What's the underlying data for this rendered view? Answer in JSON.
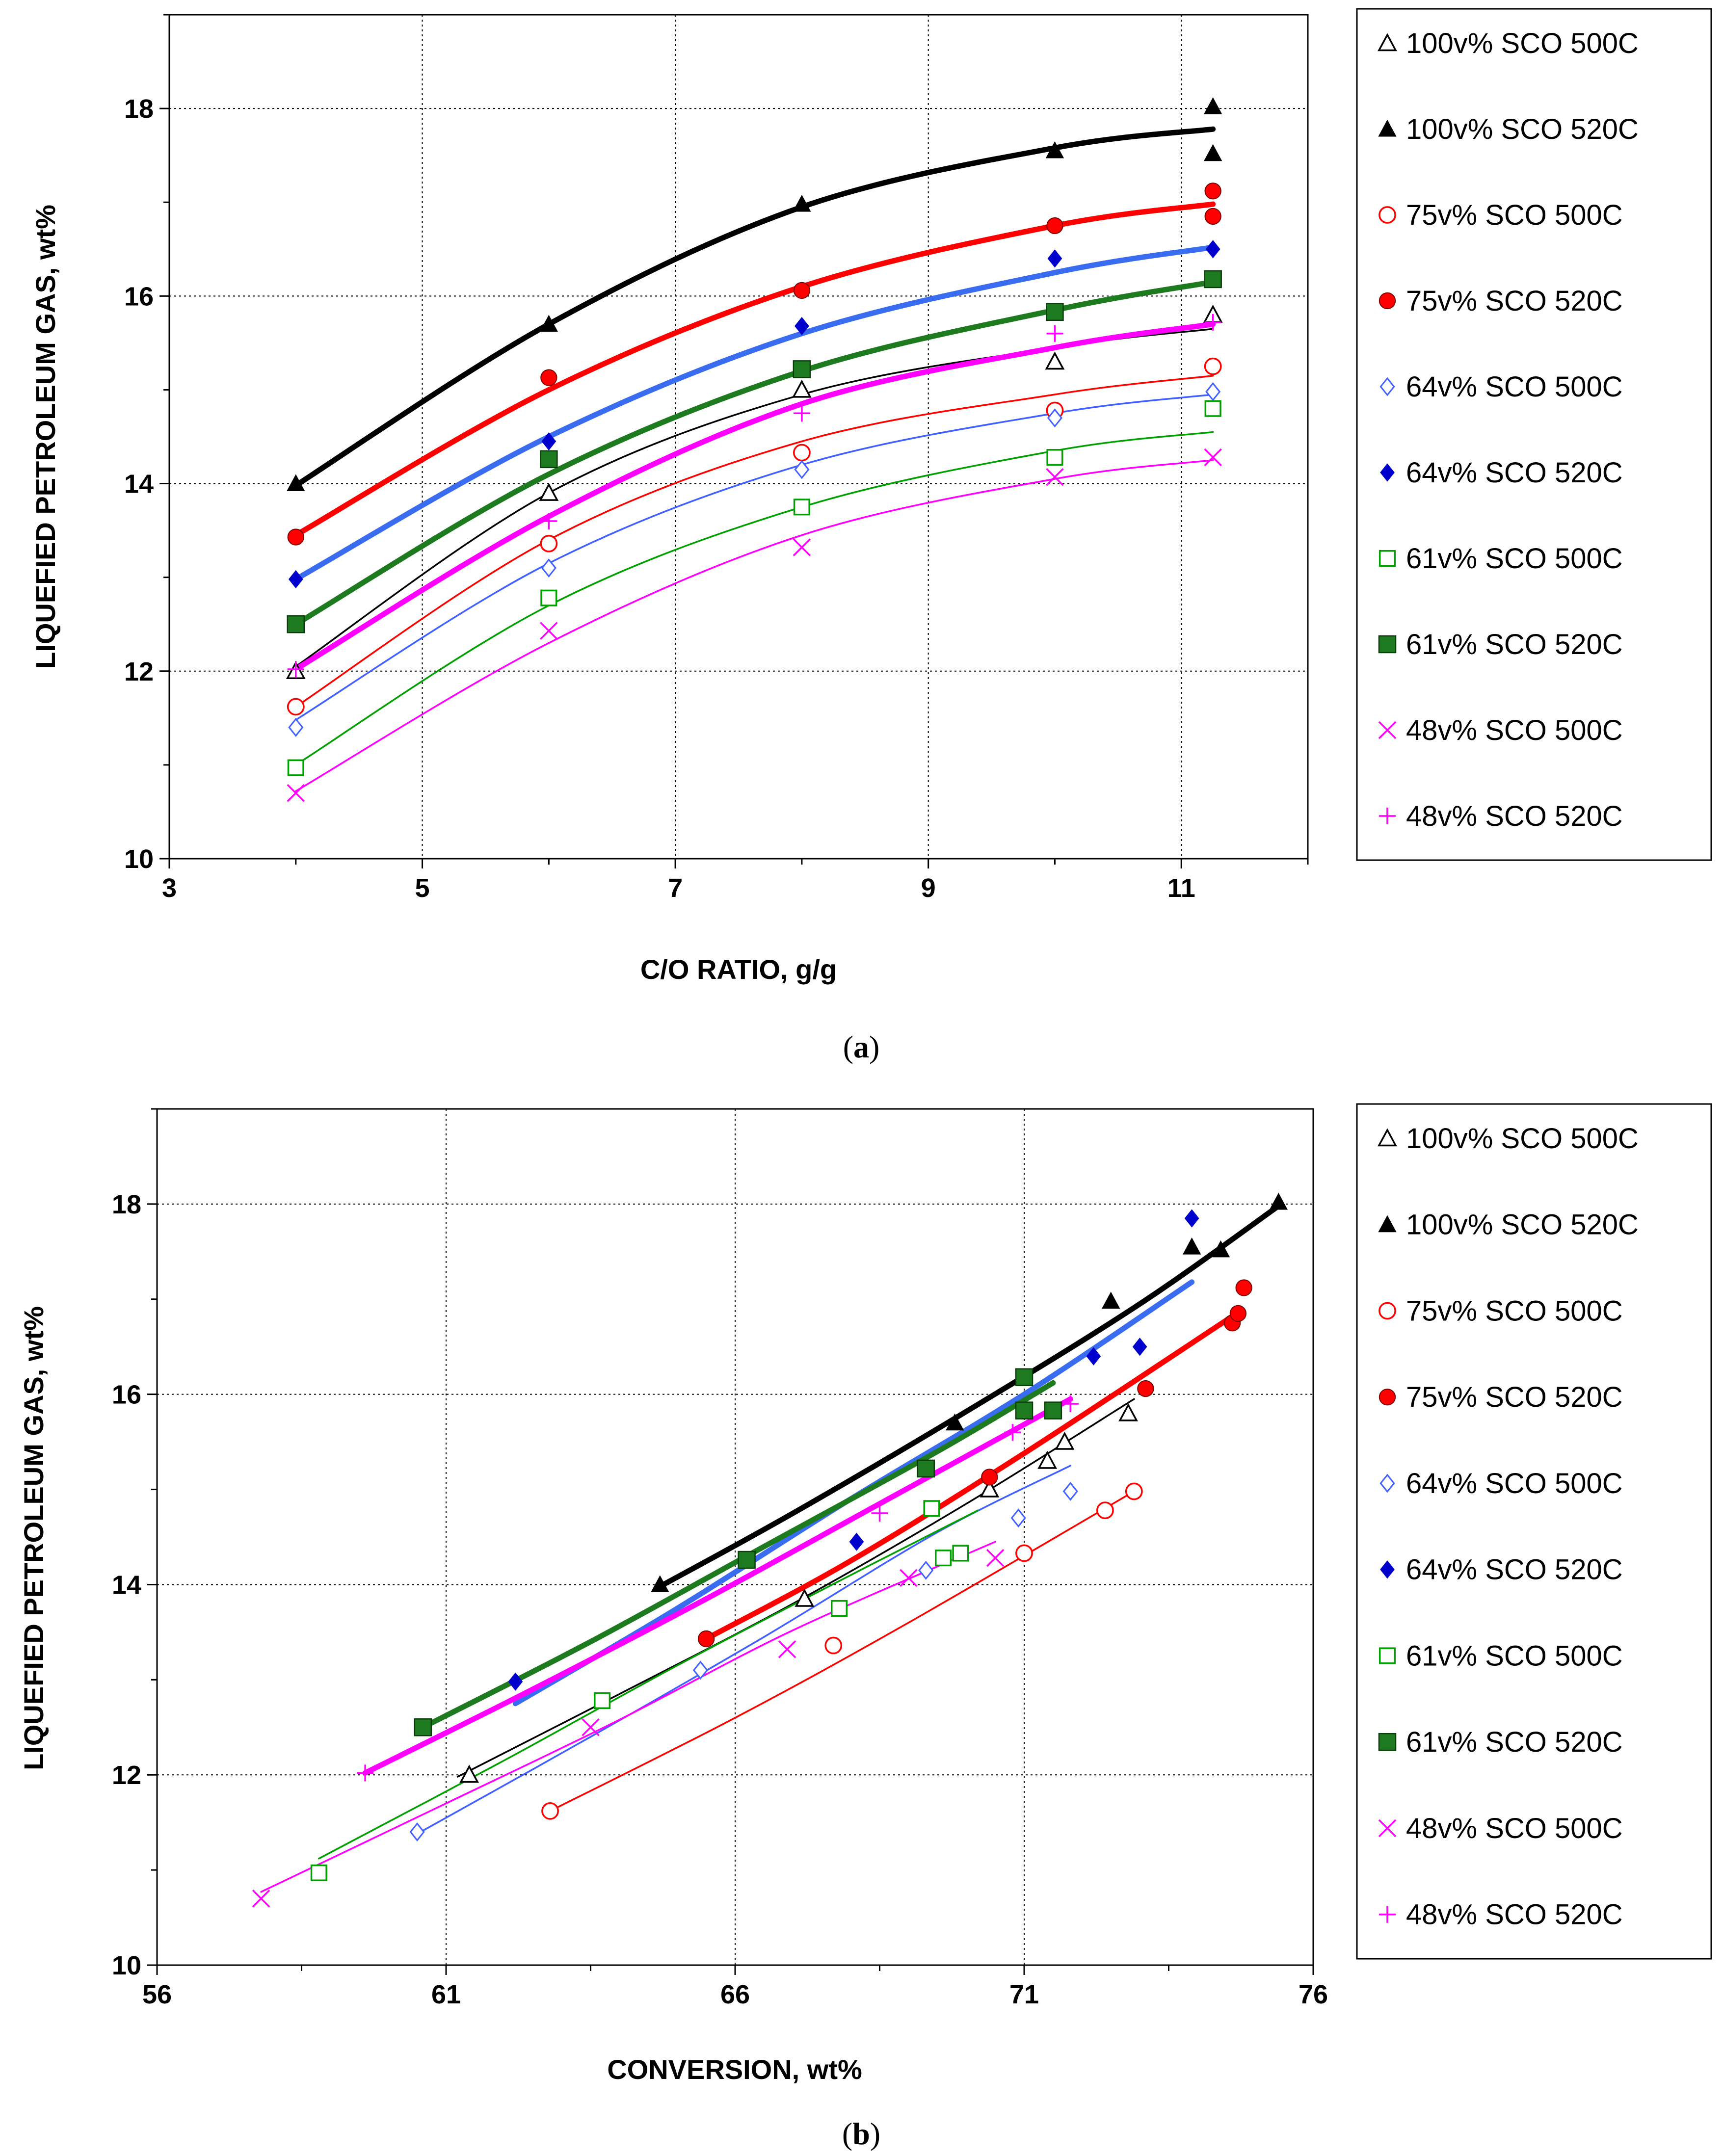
{
  "chart_data": [
    {
      "type": "scatter",
      "panel": "(a)",
      "caption_letter": "a",
      "xlabel": "C/O RATIO, g/g",
      "ylabel": "LIQUEFIED PETROLEUM GAS, wt%",
      "xlim": [
        3,
        12
      ],
      "ylim": [
        10,
        19
      ],
      "xticks": [
        3,
        5,
        7,
        9,
        11
      ],
      "yticks": [
        10,
        12,
        14,
        16,
        18
      ],
      "grid": true,
      "legend_position": "right",
      "series": [
        {
          "name": "100v% SCO 500C",
          "marker": "triangle-open",
          "color": "#000000",
          "trend_width": "thin",
          "points": [
            [
              4,
              12.0
            ],
            [
              6,
              13.9
            ],
            [
              8,
              15.0
            ],
            [
              10,
              15.3
            ],
            [
              11.25,
              15.8
            ]
          ],
          "trend": [
            [
              4,
              12.05
            ],
            [
              6,
              13.9
            ],
            [
              8,
              14.95
            ],
            [
              10,
              15.45
            ],
            [
              11.25,
              15.65
            ]
          ]
        },
        {
          "name": "100v% SCO 520C",
          "marker": "triangle-filled",
          "color": "#000000",
          "trend_width": "thick",
          "points": [
            [
              4,
              14.0
            ],
            [
              6,
              15.7
            ],
            [
              8,
              16.98
            ],
            [
              10,
              17.55
            ],
            [
              11.25,
              18.02
            ],
            [
              11.25,
              17.52
            ]
          ],
          "trend": [
            [
              4,
              13.98
            ],
            [
              6,
              15.7
            ],
            [
              8,
              16.95
            ],
            [
              10,
              17.58
            ],
            [
              11.25,
              17.78
            ]
          ]
        },
        {
          "name": "75v% SCO 500C",
          "marker": "circle-open",
          "color": "#ff0000",
          "trend_width": "thin",
          "points": [
            [
              4,
              11.62
            ],
            [
              6,
              13.36
            ],
            [
              8,
              14.33
            ],
            [
              10,
              14.78
            ],
            [
              11.25,
              15.25
            ]
          ],
          "trend": [
            [
              4,
              11.62
            ],
            [
              6,
              13.4
            ],
            [
              8,
              14.45
            ],
            [
              10,
              14.95
            ],
            [
              11.25,
              15.15
            ]
          ]
        },
        {
          "name": "75v% SCO 520C",
          "marker": "circle-filled",
          "color": "#ff0000",
          "trend_width": "thick",
          "points": [
            [
              4,
              13.43
            ],
            [
              6,
              15.13
            ],
            [
              8,
              16.06
            ],
            [
              10,
              16.75
            ],
            [
              11.25,
              17.12
            ],
            [
              11.25,
              16.85
            ]
          ],
          "trend": [
            [
              4,
              13.45
            ],
            [
              6,
              15.0
            ],
            [
              8,
              16.1
            ],
            [
              10,
              16.75
            ],
            [
              11.25,
              16.98
            ]
          ]
        },
        {
          "name": "64v% SCO 500C",
          "marker": "diamond-open",
          "color": "#4060ff",
          "trend_width": "thin",
          "points": [
            [
              4,
              11.4
            ],
            [
              6,
              13.1
            ],
            [
              8,
              14.15
            ],
            [
              10,
              14.7
            ],
            [
              11.25,
              14.98
            ]
          ],
          "trend": [
            [
              4,
              11.48
            ],
            [
              6,
              13.15
            ],
            [
              8,
              14.2
            ],
            [
              10,
              14.75
            ],
            [
              11.25,
              14.95
            ]
          ]
        },
        {
          "name": "64v% SCO 520C",
          "marker": "diamond-filled",
          "color": "#0000cc",
          "trend_width": "thick",
          "points": [
            [
              4,
              12.98
            ],
            [
              6,
              14.45
            ],
            [
              8,
              15.68
            ],
            [
              10,
              16.4
            ],
            [
              11.25,
              16.5
            ]
          ],
          "trend": [
            [
              4,
              12.98
            ],
            [
              6,
              14.5
            ],
            [
              8,
              15.6
            ],
            [
              10,
              16.25
            ],
            [
              11.25,
              16.52
            ]
          ]
        },
        {
          "name": "61v% SCO 500C",
          "marker": "square-open",
          "color": "#00a000",
          "trend_width": "thin",
          "points": [
            [
              4,
              10.97
            ],
            [
              6,
              12.78
            ],
            [
              8,
              13.75
            ],
            [
              10,
              14.28
            ],
            [
              11.25,
              14.8
            ]
          ],
          "trend": [
            [
              4,
              11.0
            ],
            [
              6,
              12.7
            ],
            [
              8,
              13.75
            ],
            [
              10,
              14.35
            ],
            [
              11.25,
              14.55
            ]
          ]
        },
        {
          "name": "61v% SCO 520C",
          "marker": "square-filled",
          "color": "#1e7a1e",
          "trend_width": "thick",
          "points": [
            [
              4,
              12.5
            ],
            [
              6,
              14.26
            ],
            [
              8,
              15.22
            ],
            [
              10,
              15.83
            ],
            [
              11.25,
              16.18
            ]
          ],
          "trend": [
            [
              4,
              12.5
            ],
            [
              6,
              14.1
            ],
            [
              8,
              15.2
            ],
            [
              10,
              15.85
            ],
            [
              11.25,
              16.15
            ]
          ]
        },
        {
          "name": "48v% SCO 500C",
          "marker": "x",
          "color": "#ff00ff",
          "trend_width": "thin",
          "points": [
            [
              4,
              10.7
            ],
            [
              6,
              12.43
            ],
            [
              8,
              13.32
            ],
            [
              10,
              14.07
            ],
            [
              11.25,
              14.28
            ]
          ],
          "trend": [
            [
              4,
              10.72
            ],
            [
              6,
              12.3
            ],
            [
              8,
              13.45
            ],
            [
              10,
              14.05
            ],
            [
              11.25,
              14.25
            ]
          ]
        },
        {
          "name": "48v% SCO 520C",
          "marker": "plus",
          "color": "#ff00ff",
          "trend_width": "thick",
          "points": [
            [
              4,
              12.02
            ],
            [
              6,
              13.6
            ],
            [
              8,
              14.75
            ],
            [
              10,
              15.6
            ],
            [
              11.25,
              15.72
            ]
          ],
          "trend": [
            [
              4,
              12.02
            ],
            [
              6,
              13.65
            ],
            [
              8,
              14.85
            ],
            [
              10,
              15.45
            ],
            [
              11.25,
              15.7
            ]
          ]
        }
      ]
    },
    {
      "type": "scatter",
      "panel": "(b)",
      "caption_letter": "b",
      "xlabel": "CONVERSION, wt%",
      "ylabel": "LIQUEFIED PETROLEUM GAS, wt%",
      "xlim": [
        56,
        76
      ],
      "ylim": [
        10,
        19
      ],
      "xticks": [
        56,
        61,
        66,
        71,
        76
      ],
      "yticks": [
        10,
        12,
        14,
        16,
        18
      ],
      "grid": true,
      "legend_position": "right",
      "series": [
        {
          "name": "100v% SCO 500C",
          "marker": "triangle-open",
          "color": "#000000",
          "trend_width": "thin",
          "points": [
            [
              61.4,
              12.0
            ],
            [
              67.2,
              13.85
            ],
            [
              70.4,
              15.0
            ],
            [
              71.4,
              15.3
            ],
            [
              71.7,
              15.5
            ],
            [
              72.8,
              15.8
            ]
          ],
          "trend": [
            [
              61.2,
              11.98
            ],
            [
              64.0,
              12.85
            ],
            [
              67.0,
              13.8
            ],
            [
              70.0,
              14.85
            ],
            [
              72.9,
              15.95
            ]
          ]
        },
        {
          "name": "100v% SCO 520C",
          "marker": "triangle-filled",
          "color": "#000000",
          "trend_width": "thick",
          "points": [
            [
              64.7,
              14.0
            ],
            [
              69.8,
              15.7
            ],
            [
              72.5,
              16.98
            ],
            [
              73.9,
              17.55
            ],
            [
              74.4,
              17.52
            ],
            [
              75.4,
              18.02
            ]
          ],
          "trend": [
            [
              64.7,
              13.98
            ],
            [
              67.0,
              14.75
            ],
            [
              70.0,
              15.82
            ],
            [
              73.0,
              16.95
            ],
            [
              75.4,
              17.98
            ]
          ]
        },
        {
          "name": "75v% SCO 500C",
          "marker": "circle-open",
          "color": "#ff0000",
          "trend_width": "thin",
          "points": [
            [
              62.8,
              11.62
            ],
            [
              67.7,
              13.36
            ],
            [
              71.0,
              14.33
            ],
            [
              72.4,
              14.78
            ],
            [
              72.9,
              14.98
            ]
          ],
          "trend": [
            [
              62.8,
              11.62
            ],
            [
              66.0,
              12.6
            ],
            [
              69.0,
              13.6
            ],
            [
              72.9,
              14.98
            ]
          ]
        },
        {
          "name": "75v% SCO 520C",
          "marker": "circle-filled",
          "color": "#ff0000",
          "trend_width": "thick",
          "points": [
            [
              65.5,
              13.43
            ],
            [
              70.4,
              15.13
            ],
            [
              73.1,
              16.06
            ],
            [
              74.6,
              16.75
            ],
            [
              74.7,
              16.85
            ],
            [
              74.8,
              17.12
            ]
          ],
          "trend": [
            [
              65.5,
              13.43
            ],
            [
              68.0,
              14.25
            ],
            [
              71.0,
              15.38
            ],
            [
              74.6,
              16.82
            ]
          ]
        },
        {
          "name": "64v% SCO 500C",
          "marker": "diamond-open",
          "color": "#4060ff",
          "trend_width": "thin",
          "points": [
            [
              60.5,
              11.4
            ],
            [
              65.4,
              13.1
            ],
            [
              69.3,
              14.15
            ],
            [
              70.9,
              14.7
            ],
            [
              71.8,
              14.98
            ]
          ],
          "trend": [
            [
              60.5,
              11.38
            ],
            [
              63.5,
              12.4
            ],
            [
              66.5,
              13.45
            ],
            [
              69.5,
              14.55
            ],
            [
              71.8,
              15.25
            ]
          ]
        },
        {
          "name": "64v% SCO 520C",
          "marker": "diamond-filled",
          "color": "#0000cc",
          "trend_width": "thick",
          "points": [
            [
              62.2,
              12.98
            ],
            [
              68.1,
              14.45
            ],
            [
              72.2,
              16.4
            ],
            [
              73.0,
              16.5
            ],
            [
              73.9,
              17.85
            ]
          ],
          "trend": [
            [
              62.2,
              12.75
            ],
            [
              65.0,
              13.75
            ],
            [
              68.0,
              14.9
            ],
            [
              71.0,
              16.0
            ],
            [
              73.9,
              17.18
            ]
          ]
        },
        {
          "name": "61v% SCO 500C",
          "marker": "square-open",
          "color": "#00a000",
          "trend_width": "thin",
          "points": [
            [
              58.8,
              10.97
            ],
            [
              63.7,
              12.78
            ],
            [
              67.8,
              13.75
            ],
            [
              69.4,
              14.8
            ],
            [
              69.6,
              14.28
            ],
            [
              69.9,
              14.33
            ]
          ],
          "trend": [
            [
              58.8,
              11.12
            ],
            [
              62.0,
              12.15
            ],
            [
              65.0,
              13.15
            ],
            [
              68.0,
              14.1
            ],
            [
              70.2,
              14.78
            ]
          ]
        },
        {
          "name": "61v% SCO 520C",
          "marker": "square-filled",
          "color": "#1e7a1e",
          "trend_width": "thick",
          "points": [
            [
              60.6,
              12.5
            ],
            [
              66.2,
              14.26
            ],
            [
              69.3,
              15.22
            ],
            [
              71.0,
              16.18
            ],
            [
              71.0,
              15.83
            ],
            [
              71.5,
              15.83
            ]
          ],
          "trend": [
            [
              60.6,
              12.5
            ],
            [
              63.5,
              13.4
            ],
            [
              66.5,
              14.4
            ],
            [
              69.5,
              15.4
            ],
            [
              71.5,
              16.12
            ]
          ]
        },
        {
          "name": "48v% SCO 500C",
          "marker": "x",
          "color": "#ff00ff",
          "trend_width": "thin",
          "points": [
            [
              57.8,
              10.7
            ],
            [
              63.5,
              12.5
            ],
            [
              66.9,
              13.32
            ],
            [
              69.0,
              14.07
            ],
            [
              70.5,
              14.28
            ]
          ],
          "trend": [
            [
              57.8,
              10.77
            ],
            [
              61.0,
              11.7
            ],
            [
              64.0,
              12.58
            ],
            [
              67.0,
              13.52
            ],
            [
              70.5,
              14.45
            ]
          ]
        },
        {
          "name": "48v% SCO 520C",
          "marker": "plus",
          "color": "#ff00ff",
          "trend_width": "thick",
          "points": [
            [
              59.6,
              12.02
            ],
            [
              68.5,
              14.75
            ],
            [
              70.8,
              15.6
            ],
            [
              71.8,
              15.9
            ]
          ],
          "trend": [
            [
              59.6,
              12.02
            ],
            [
              62.5,
              12.9
            ],
            [
              65.5,
              13.85
            ],
            [
              68.5,
              14.85
            ],
            [
              71.8,
              15.95
            ]
          ]
        }
      ]
    }
  ]
}
